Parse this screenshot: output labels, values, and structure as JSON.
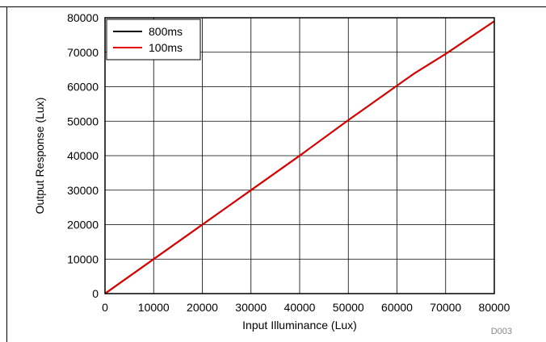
{
  "chart_data": {
    "type": "line",
    "xlabel": "Input Illuminance (Lux)",
    "ylabel": "Output Response (Lux)",
    "xlim": [
      0,
      80000
    ],
    "ylim": [
      0,
      80000
    ],
    "x_ticks": [
      0,
      10000,
      20000,
      30000,
      40000,
      50000,
      60000,
      70000,
      80000
    ],
    "y_ticks": [
      0,
      10000,
      20000,
      30000,
      40000,
      50000,
      60000,
      70000,
      80000
    ],
    "x_tick_labels": [
      "0",
      "10000",
      "20000",
      "30000",
      "40000",
      "50000",
      "60000",
      "70000",
      "80000"
    ],
    "y_tick_labels": [
      "0",
      "10000",
      "20000",
      "30000",
      "40000",
      "50000",
      "60000",
      "70000",
      "80000"
    ],
    "grid": true,
    "legend": {
      "placement": "top-left"
    },
    "series": [
      {
        "name": "800ms",
        "color": "#000000",
        "x": [
          0,
          10000,
          20000,
          30000,
          40000,
          50000,
          60000,
          63500,
          70000,
          80000
        ],
        "y": [
          0,
          10000,
          20000,
          30000,
          40000,
          50300,
          60300,
          63800,
          69500,
          79000
        ]
      },
      {
        "name": "100ms",
        "color": "#e00000",
        "x": [
          0,
          10000,
          20000,
          30000,
          40000,
          50000,
          60000,
          63500,
          70000,
          80000
        ],
        "y": [
          0,
          10000,
          20000,
          30000,
          40000,
          50300,
          60300,
          63800,
          69500,
          79000
        ]
      }
    ]
  },
  "figure_ref": "D003"
}
